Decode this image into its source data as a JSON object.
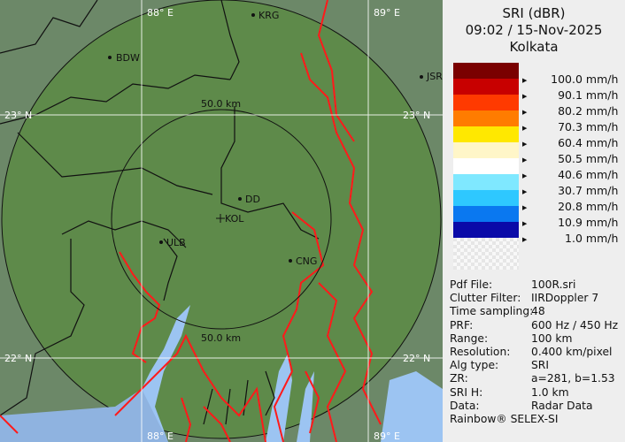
{
  "panel": {
    "product": "SRI (dBR)",
    "datetime": "09:02 / 15-Nov-2025",
    "site": "Kolkata",
    "legend": [
      {
        "label": "100.0 mm/h",
        "color": "#7a0000"
      },
      {
        "label": "90.1 mm/h",
        "color": "#c80000"
      },
      {
        "label": "80.2 mm/h",
        "color": "#ff3a00"
      },
      {
        "label": "70.3 mm/h",
        "color": "#ff7c00"
      },
      {
        "label": "60.4 mm/h",
        "color": "#ffe800"
      },
      {
        "label": "50.5 mm/h",
        "color": "#fff6c8"
      },
      {
        "label": "40.6 mm/h",
        "color": "#ffffff"
      },
      {
        "label": "30.7 mm/h",
        "color": "#7fe8ff"
      },
      {
        "label": "20.8 mm/h",
        "color": "#2ec8ff"
      },
      {
        "label": "10.9 mm/h",
        "color": "#0a78f0"
      },
      {
        "label": "1.0 mm/h",
        "color": "#0a0aa8"
      }
    ],
    "info": [
      {
        "key": "Pdf File:",
        "value": "100R.sri"
      },
      {
        "key": "Clutter Filter:",
        "value": "IIRDoppler 7"
      },
      {
        "key": "Time sampling:",
        "value": "48"
      },
      {
        "key": "PRF:",
        "value": "600 Hz / 450 Hz"
      },
      {
        "key": "Range:",
        "value": "100 km"
      },
      {
        "key": "Resolution:",
        "value": "0.400 km/pixel"
      },
      {
        "key": "Alg type:",
        "value": "SRI"
      },
      {
        "key": "ZR:",
        "value": "a=281, b=1.53"
      },
      {
        "key": "SRI H:",
        "value": "1.0 km"
      },
      {
        "key": "Data:",
        "value": "Radar Data"
      }
    ],
    "footer": "Rainbow® SELEX-SI"
  },
  "map": {
    "grid_labels": {
      "lon1": "88° E",
      "lon2": "89° E",
      "lat1": "23° N",
      "lat2": "22° N"
    },
    "range_rings": [
      "50.0 km",
      "50.0 km"
    ],
    "stations": [
      "KRG",
      "BDW",
      "JSR",
      "DD",
      "KOL",
      "ULB",
      "CNG"
    ],
    "colors": {
      "land": "#5e8a4a",
      "outside": "#6c8868",
      "water": "#9cc4f2",
      "rivers": "#ff1a1a"
    }
  }
}
